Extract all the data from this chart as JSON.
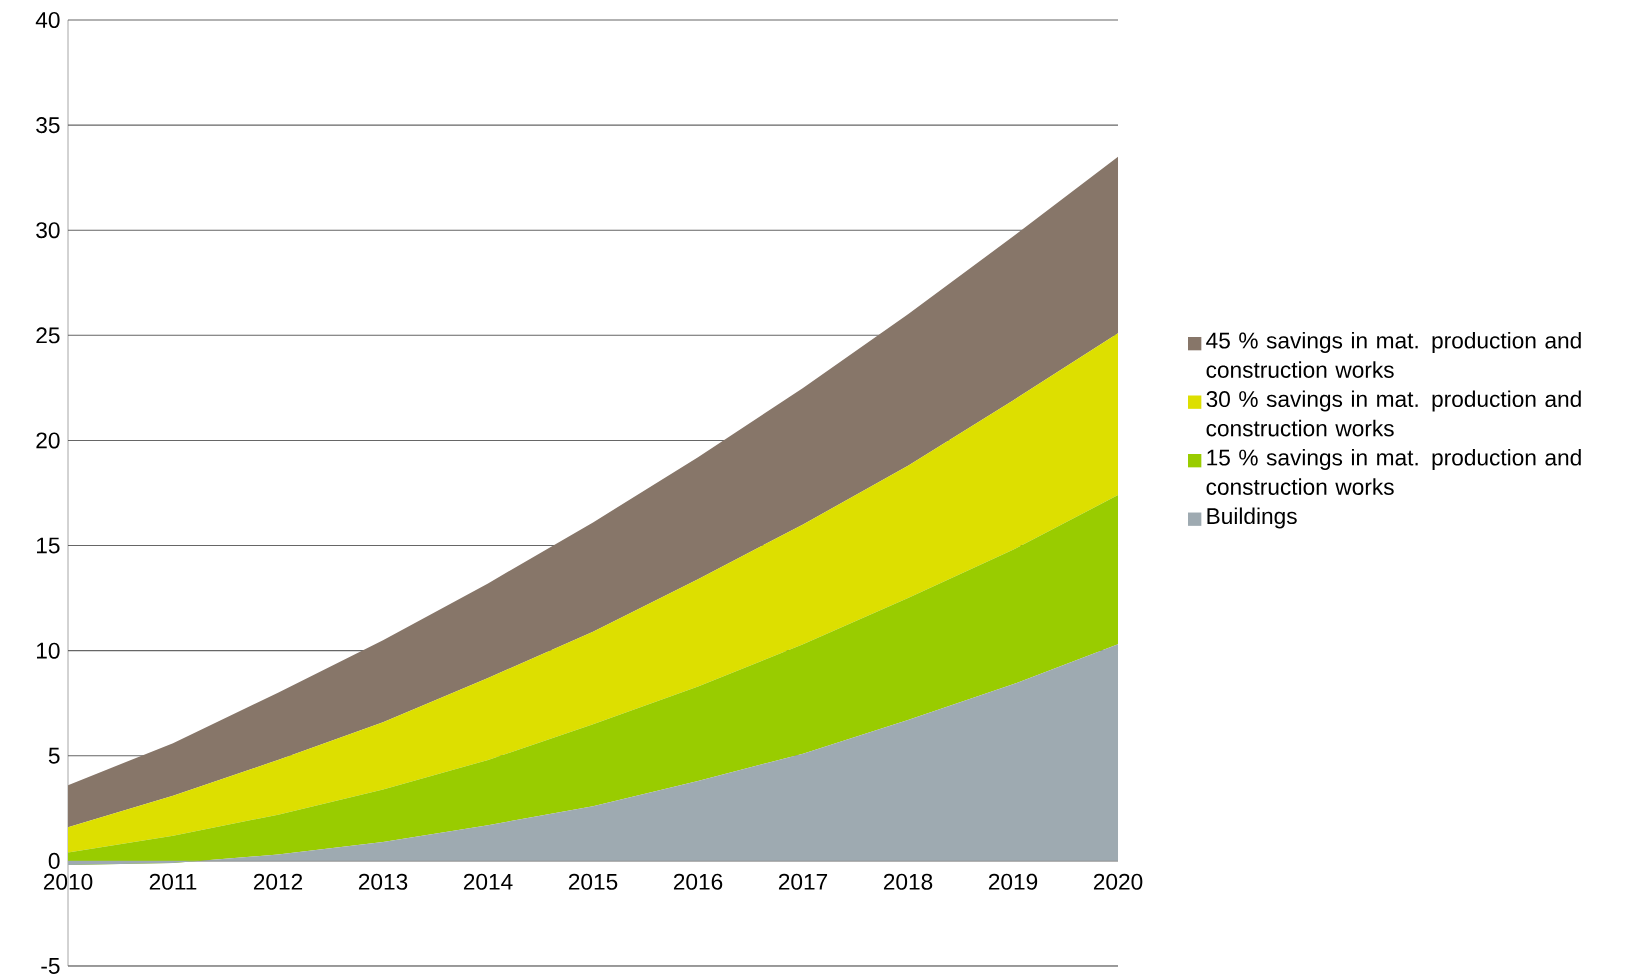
{
  "chart_data": {
    "type": "area",
    "stacked": true,
    "x": [
      2010,
      2011,
      2012,
      2013,
      2014,
      2015,
      2016,
      2017,
      2018,
      2019,
      2020
    ],
    "series": [
      {
        "name": "Buildings",
        "color": "#9eaab1",
        "values": [
          -0.2,
          -0.1,
          0.3,
          0.9,
          1.7,
          2.6,
          3.8,
          5.1,
          6.7,
          8.4,
          10.3
        ]
      },
      {
        "name": "15 % savings in mat. production and construction works",
        "color": "#99cc00",
        "values": [
          0.6,
          1.3,
          1.9,
          2.5,
          3.1,
          3.9,
          4.5,
          5.2,
          5.8,
          6.4,
          7.1
        ]
      },
      {
        "name": "30 % savings in mat. production and construction works",
        "color": "#dddf00",
        "values": [
          1.2,
          1.9,
          2.6,
          3.2,
          3.9,
          4.4,
          5.1,
          5.7,
          6.3,
          7.1,
          7.7
        ]
      },
      {
        "name": "45 % savings in mat. production and construction works",
        "color": "#877669",
        "values": [
          2.0,
          2.5,
          3.2,
          3.9,
          4.5,
          5.2,
          5.8,
          6.5,
          7.2,
          7.8,
          8.4
        ]
      }
    ],
    "xlim": [
      2010,
      2020
    ],
    "xticks": [
      2010,
      2011,
      2012,
      2013,
      2014,
      2015,
      2016,
      2017,
      2018,
      2019,
      2020
    ],
    "ylim": [
      -5,
      40
    ],
    "yticks": [
      -5,
      0,
      5,
      10,
      15,
      20,
      25,
      30,
      35,
      40
    ],
    "grid": "y",
    "legend": "right"
  }
}
